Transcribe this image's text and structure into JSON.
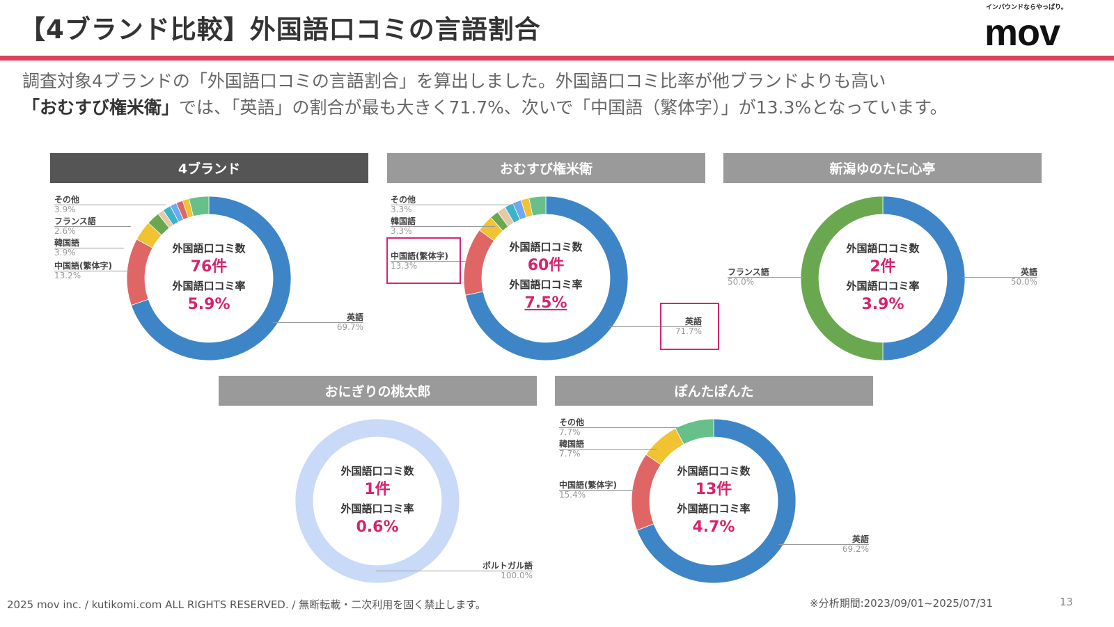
{
  "header": {
    "title": "【4ブランド比較】外国語口コミの言語割合",
    "logo_tagline": "インバウンドならやっぱり。",
    "logo": "mov"
  },
  "description": {
    "line1": "調査対象4ブランドの「外国語口コミの言語割合」を算出しました。外国語口コミ比率が他ブランドよりも高い",
    "brand": "「おむすび権米衛」",
    "line2": "では、「英語」の割合が最も大きく71.7%、次いで「中国語（繁体字）」が13.3%となっています。"
  },
  "center_labels": {
    "count": "外国語口コミ数",
    "rate": "外国語口コミ率"
  },
  "colors": {
    "accent": "#e0405c",
    "value": "#d6246e",
    "blue": "#3d85c6",
    "red": "#e06666",
    "yellow": "#f1c232",
    "green": "#6aa84f",
    "lightgreen": "#67c08a",
    "beige": "#e6c9a8",
    "teal": "#3bb4c9",
    "lightblue": "#6fa8f0",
    "pale": "#c9daf8"
  },
  "chart_data": [
    {
      "type": "pie",
      "title": "4ブランド",
      "count": "76件",
      "rate": "5.9%",
      "segments": [
        {
          "name": "英語",
          "value": 69.7,
          "label": "69.7%",
          "color": "#3d85c6"
        },
        {
          "name": "中国語(繁体字)",
          "value": 13.2,
          "label": "13.2%",
          "color": "#e06666"
        },
        {
          "name": "韓国語",
          "value": 3.9,
          "label": "3.9%",
          "color": "#f1c232"
        },
        {
          "name": "フランス語",
          "value": 2.6,
          "label": "2.6%",
          "color": "#6aa84f"
        },
        {
          "name": "",
          "value": 1.2,
          "color": "#e6c9a8"
        },
        {
          "name": "",
          "value": 1.6,
          "color": "#3bb4c9"
        },
        {
          "name": "",
          "value": 1.3,
          "color": "#6fa8f0"
        },
        {
          "name": "",
          "value": 1.3,
          "color": "#e06666"
        },
        {
          "name": "",
          "value": 1.3,
          "color": "#f1c232"
        },
        {
          "name": "その他",
          "value": 3.9,
          "label": "3.9%",
          "color": "#67c08a"
        }
      ]
    },
    {
      "type": "pie",
      "title": "おむすび権米衛",
      "count": "60件",
      "rate": "7.5%",
      "segments": [
        {
          "name": "英語",
          "value": 71.7,
          "label": "71.7%",
          "color": "#3d85c6"
        },
        {
          "name": "中国語(繁体字)",
          "value": 13.3,
          "label": "13.3%",
          "color": "#e06666"
        },
        {
          "name": "韓国語",
          "value": 3.3,
          "label": "3.3%",
          "color": "#f1c232"
        },
        {
          "name": "",
          "value": 1.7,
          "color": "#6aa84f"
        },
        {
          "name": "",
          "value": 1.7,
          "color": "#e6c9a8"
        },
        {
          "name": "",
          "value": 1.7,
          "color": "#3bb4c9"
        },
        {
          "name": "",
          "value": 1.7,
          "color": "#6fa8f0"
        },
        {
          "name": "",
          "value": 1.6,
          "color": "#f1c232"
        },
        {
          "name": "その他",
          "value": 3.3,
          "label": "3.3%",
          "color": "#67c08a"
        }
      ]
    },
    {
      "type": "pie",
      "title": "新潟ゆのたに心亭",
      "count": "2件",
      "rate": "3.9%",
      "segments": [
        {
          "name": "英語",
          "value": 50.0,
          "label": "50.0%",
          "color": "#3d85c6"
        },
        {
          "name": "フランス語",
          "value": 50.0,
          "label": "50.0%",
          "color": "#6aa84f"
        }
      ]
    },
    {
      "type": "pie",
      "title": "おにぎりの桃太郎",
      "count": "1件",
      "rate": "0.6%",
      "segments": [
        {
          "name": "ポルトガル語",
          "value": 100.0,
          "label": "100.0%",
          "color": "#c9daf8"
        }
      ]
    },
    {
      "type": "pie",
      "title": "ぽんたぽんた",
      "count": "13件",
      "rate": "4.7%",
      "segments": [
        {
          "name": "英語",
          "value": 69.2,
          "label": "69.2%",
          "color": "#3d85c6"
        },
        {
          "name": "中国語(繁体字)",
          "value": 15.4,
          "label": "15.4%",
          "color": "#e06666"
        },
        {
          "name": "韓国語",
          "value": 7.7,
          "label": "7.7%",
          "color": "#f1c232"
        },
        {
          "name": "その他",
          "value": 7.7,
          "label": "7.7%",
          "color": "#67c08a"
        }
      ]
    }
  ],
  "footer": {
    "copyright": "2025 mov inc. / kutikomi.com ALL RIGHTS RESERVED. / 無断転載・二次利用を固く禁止します。",
    "period": "※分析期間:2023/09/01~2025/07/31",
    "page": "13"
  }
}
